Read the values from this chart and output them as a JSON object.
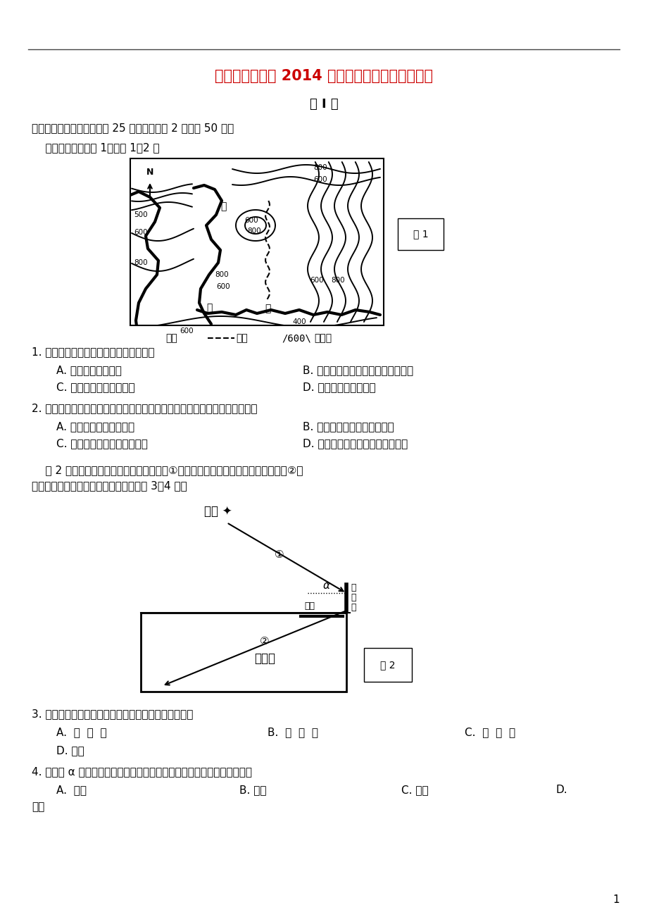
{
  "bg_color": "#ffffff",
  "title_color": "#cc0000",
  "title": "六安市城南中学 2014 届高三第四次月考地理试卷",
  "subtitle": "第 I 卷",
  "section1": "一、单项选择题（本大题共 25 小题，每小题 2 分，共 50 分）",
  "intro1": "    读下面等高线图图 1，完成 1～2 题",
  "fig1_label": "图 1",
  "q1": "1. 图中河流甲与河流乙相比，能确定的是",
  "q1a": "A. 甲河水量大于乙河",
  "q1b": "B. 甲河主要流向西，乙河主要流向东",
  "q1c": "C. 甲河通航里程长于乙河",
  "q1d": "D. 甲河结冰期长于乙河",
  "q2": "2. 图中两河流间开挖了一条运河，但并没有选择在甲、乙两点之间，其原因是",
  "q2a": "A. 甲、乙两点间距离较远",
  "q2b": "B. 甲、乙两点间相对高度较大",
  "q2c": "C. 甲、乙两点间地形起伏较大",
  "q2d": "D. 甲、乙两点间有难以逾越的河流",
  "intro2_line1": "    图 2 为安徽某地地下室采光示意图，箭头①表示某日正午太阳光线照射情况，箭头②表",
  "intro2_line2": "示通过反光镜反射到地下室的光线。完成 3～4 题。",
  "fig2_label": "图 2",
  "q3": "3. 下列节日中，地下室地面被反射光照射面积最大的是",
  "q3a": "A.  清  明  节",
  "q3b": "B.  五  一  节",
  "q3c": "C.  国  庆  节",
  "q3d": "D. 元旦",
  "q4": "4. 当图中 α 角最大时，通过反光镜反射光线照射地下室时间最长的地点是",
  "q4a": "A.  北京",
  "q4b": "B. 六安",
  "q4c": "C. 广州",
  "q4d": "D.",
  "q4d2": "海口",
  "page_num": "1"
}
